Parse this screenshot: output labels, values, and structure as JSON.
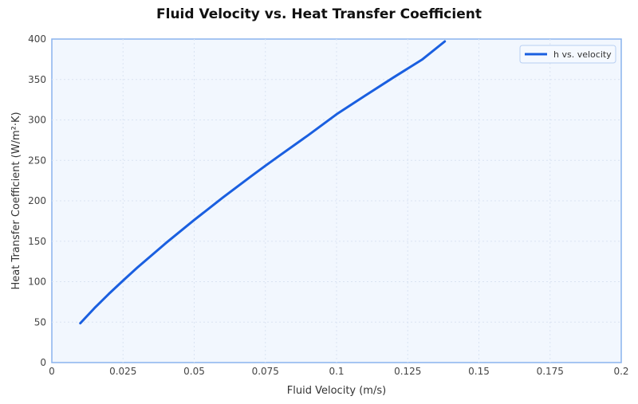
{
  "chart_data": {
    "type": "line",
    "title": "Fluid Velocity vs. Heat Transfer Coefficient",
    "xlabel": "Fluid Velocity (m/s)",
    "ylabel": "Heat Transfer Coefficient (W/m²·K)",
    "xlim": [
      0,
      0.2
    ],
    "ylim": [
      0,
      400
    ],
    "xticks": [
      "0",
      "0.025",
      "0.05",
      "0.075",
      "0.1",
      "0.125",
      "0.15",
      "0.175",
      "0.2"
    ],
    "yticks": [
      "0",
      "50",
      "100",
      "150",
      "200",
      "250",
      "300",
      "350",
      "400"
    ],
    "grid": true,
    "legend_position": "upper right",
    "series": [
      {
        "name": "h vs. velocity",
        "color": "#1a5fe0",
        "x": [
          0.01,
          0.015,
          0.02,
          0.025,
          0.03,
          0.04,
          0.05,
          0.06,
          0.07,
          0.075,
          0.08,
          0.09,
          0.1,
          0.11,
          0.12,
          0.125,
          0.13,
          0.138
        ],
        "y": [
          48.7,
          67.4,
          84.8,
          101.4,
          117.3,
          147.6,
          176.3,
          203.8,
          230.3,
          243.3,
          256.0,
          281.0,
          307.0,
          330.0,
          352.5,
          363.5,
          374.5,
          397.0
        ]
      }
    ]
  },
  "legend": {
    "label": "h vs. velocity"
  }
}
